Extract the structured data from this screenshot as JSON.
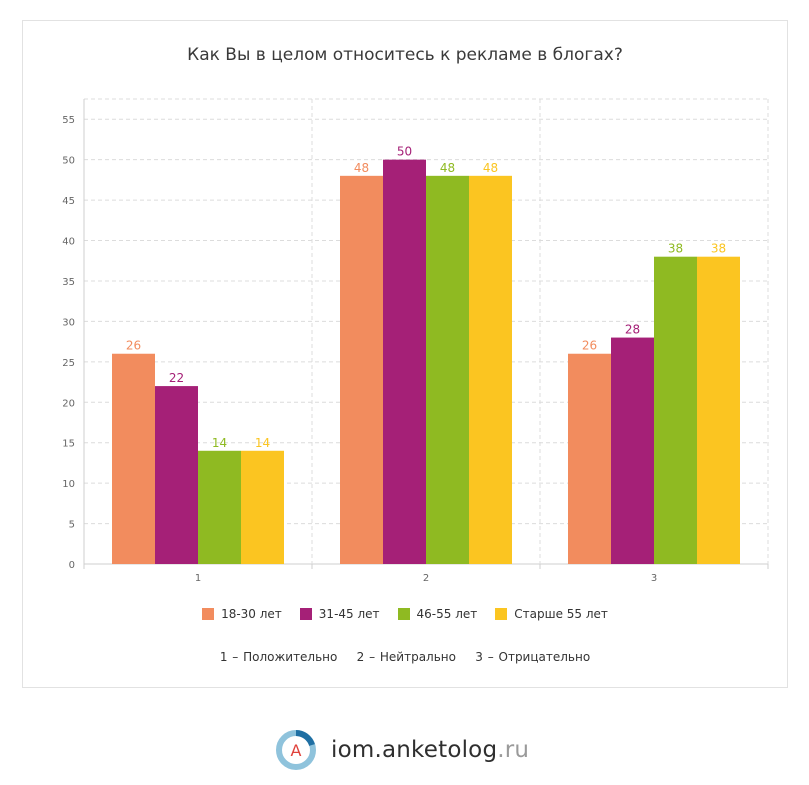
{
  "chart_data": {
    "type": "bar",
    "title": "Как Вы в целом относитесь к рекламе в блогах?",
    "categories": [
      "1",
      "2",
      "3"
    ],
    "series": [
      {
        "name": "18-30 лет",
        "color": "#f28c5e",
        "values": [
          26,
          48,
          26
        ]
      },
      {
        "name": "31-45 лет",
        "color": "#a52077",
        "values": [
          22,
          50,
          28
        ]
      },
      {
        "name": "46-55 лет",
        "color": "#8fba22",
        "values": [
          14,
          48,
          38
        ]
      },
      {
        "name": "Старше 55 лет",
        "color": "#fbc521",
        "values": [
          14,
          48,
          38
        ]
      }
    ],
    "yticks": [
      0,
      5,
      10,
      15,
      20,
      25,
      30,
      35,
      40,
      45,
      50,
      55
    ],
    "ylim": [
      0,
      57.5
    ],
    "grid": true,
    "legend": "bottom",
    "note": "1 – Положительно    2 – Нейтрально    3 – Отрицательно"
  },
  "brand": {
    "logo_letter": "A",
    "name": "iom.anketolog",
    "tld": ".ru"
  }
}
